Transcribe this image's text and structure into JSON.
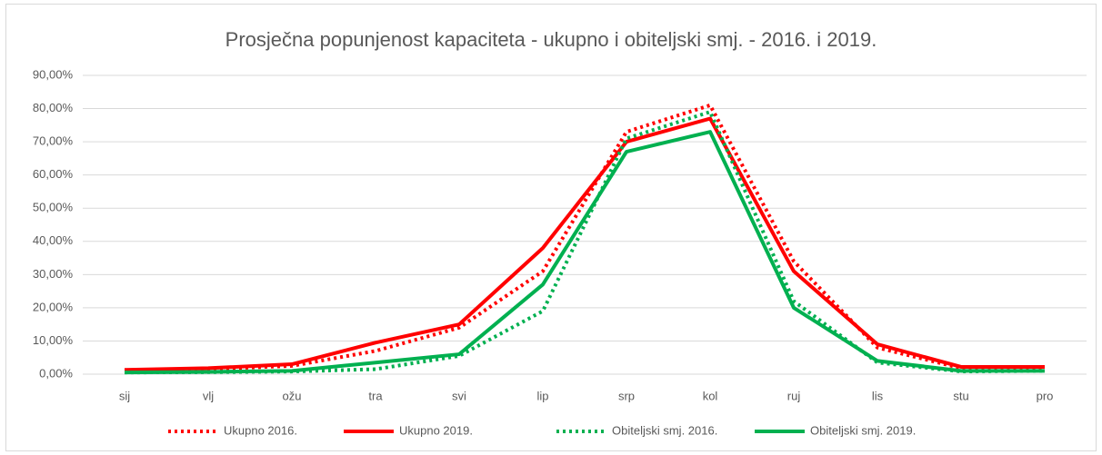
{
  "chart_data": {
    "type": "line",
    "title": "Prosječna popunjenost kapaciteta - ukupno i obiteljski smj. - 2016. i 2019.",
    "categories": [
      "sij",
      "vlj",
      "ožu",
      "tra",
      "svi",
      "lip",
      "srp",
      "kol",
      "ruj",
      "lis",
      "stu",
      "pro"
    ],
    "series": [
      {
        "name": "Ukupno 2016.",
        "color": "#ff0000",
        "line_style": "dotted",
        "values": [
          1.2,
          1.5,
          2.5,
          7,
          14,
          31,
          73,
          81,
          34,
          8,
          1.8,
          2
        ]
      },
      {
        "name": "Ukupno 2019.",
        "color": "#ff0000",
        "line_style": "solid",
        "values": [
          1.3,
          1.8,
          3,
          9.5,
          15,
          38,
          70,
          77,
          31,
          9,
          2.2,
          2.2
        ]
      },
      {
        "name": "Obiteljski smj. 2016.",
        "color": "#00b050",
        "line_style": "dotted",
        "values": [
          0.5,
          0.6,
          0.8,
          1.5,
          5.5,
          19,
          71,
          79,
          22,
          3.5,
          0.8,
          1
        ]
      },
      {
        "name": "Obiteljski smj. 2019.",
        "color": "#00b050",
        "line_style": "solid",
        "values": [
          0.5,
          0.7,
          1,
          3.5,
          6,
          27,
          67,
          73,
          20,
          4,
          1,
          1
        ]
      }
    ],
    "ylim": [
      0,
      90
    ],
    "yticks": [
      {
        "value": 0,
        "label": "0,00%"
      },
      {
        "value": 10,
        "label": "10,00%"
      },
      {
        "value": 20,
        "label": "20,00%"
      },
      {
        "value": 30,
        "label": "30,00%"
      },
      {
        "value": 40,
        "label": "40,00%"
      },
      {
        "value": 50,
        "label": "50,00%"
      },
      {
        "value": 60,
        "label": "60,00%"
      },
      {
        "value": 70,
        "label": "70,00%"
      },
      {
        "value": 80,
        "label": "80,00%"
      },
      {
        "value": 90,
        "label": "90,00%"
      }
    ],
    "grid": true,
    "legend": "bottom"
  }
}
